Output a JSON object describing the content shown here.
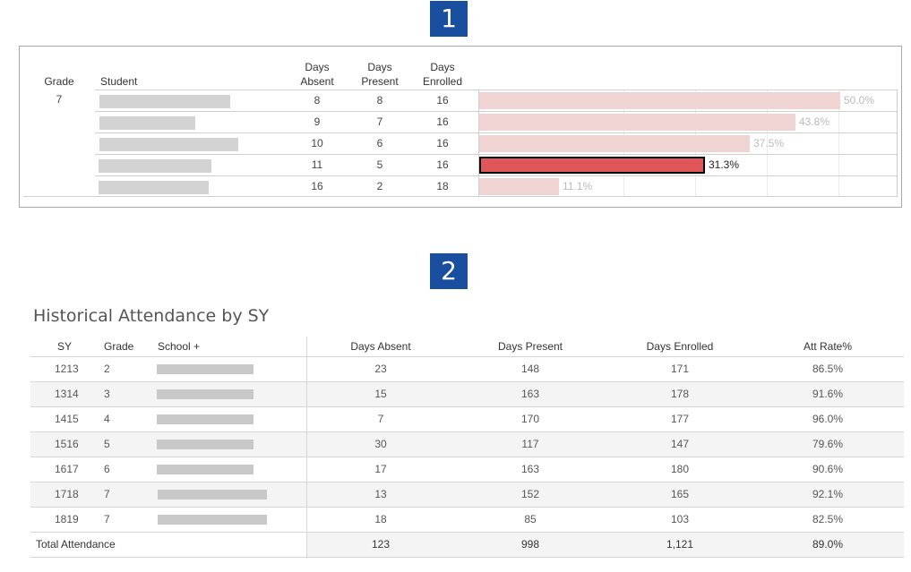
{
  "badges": {
    "first": "1",
    "second": "2"
  },
  "panel1": {
    "headers": {
      "grade": "Grade",
      "student": "Student",
      "days_absent": [
        "Days",
        "Absent"
      ],
      "days_present": [
        "Days",
        "Present"
      ],
      "days_enrolled": [
        "Days",
        "Enrolled"
      ]
    },
    "grade_value": "7",
    "rows": [
      {
        "absent": "8",
        "present": "8",
        "enrolled": "16",
        "rate": 50.0,
        "rate_label": "50.0%",
        "selected": false
      },
      {
        "absent": "9",
        "present": "7",
        "enrolled": "16",
        "rate": 43.8,
        "rate_label": "43.8%",
        "selected": false
      },
      {
        "absent": "10",
        "present": "6",
        "enrolled": "16",
        "rate": 37.5,
        "rate_label": "37.5%",
        "selected": false
      },
      {
        "absent": "11",
        "present": "5",
        "enrolled": "16",
        "rate": 31.3,
        "rate_label": "31.3%",
        "selected": true
      },
      {
        "absent": "16",
        "present": "2",
        "enrolled": "18",
        "rate": 11.1,
        "rate_label": "11.1%",
        "selected": false
      }
    ],
    "colors": {
      "bar": "#f0d3d3",
      "bar_selected": "#e15759"
    }
  },
  "panel2": {
    "title": "Historical Attendance by SY",
    "headers": {
      "sy": "SY",
      "grade": "Grade",
      "school": "School +",
      "days_absent": "Days Absent",
      "days_present": "Days Present",
      "days_enrolled": "Days Enrolled",
      "att_rate": "Att Rate%"
    },
    "rows": [
      {
        "sy": "1213",
        "grade": "2",
        "absent": "23",
        "present": "148",
        "enrolled": "171",
        "rate": "86.5%"
      },
      {
        "sy": "1314",
        "grade": "3",
        "absent": "15",
        "present": "163",
        "enrolled": "178",
        "rate": "91.6%"
      },
      {
        "sy": "1415",
        "grade": "4",
        "absent": "7",
        "present": "170",
        "enrolled": "177",
        "rate": "96.0%"
      },
      {
        "sy": "1516",
        "grade": "5",
        "absent": "30",
        "present": "117",
        "enrolled": "147",
        "rate": "79.6%"
      },
      {
        "sy": "1617",
        "grade": "6",
        "absent": "17",
        "present": "163",
        "enrolled": "180",
        "rate": "90.6%"
      },
      {
        "sy": "1718",
        "grade": "7",
        "absent": "13",
        "present": "152",
        "enrolled": "165",
        "rate": "92.1%"
      },
      {
        "sy": "1819",
        "grade": "7",
        "absent": "18",
        "present": "85",
        "enrolled": "103",
        "rate": "82.5%"
      }
    ],
    "total": {
      "label": "Total Attendance",
      "absent": "123",
      "present": "998",
      "enrolled": "1,121",
      "rate": "89.0%"
    }
  }
}
